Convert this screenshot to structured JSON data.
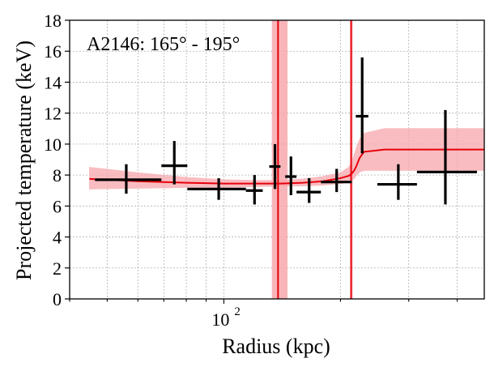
{
  "chart_data": {
    "type": "scatter",
    "annotation": "A2146: 165° - 195°",
    "xlabel": "Radius (kpc)",
    "ylabel": "Projected temperature (keV)",
    "x_scale": "log",
    "xlim": [
      40,
      470
    ],
    "ylim": [
      0,
      18
    ],
    "grid": true,
    "x_tick_labels": [
      {
        "value": 100,
        "base": "10",
        "exp": "2"
      }
    ],
    "y_ticks": [
      0,
      2,
      4,
      6,
      8,
      10,
      12,
      14,
      16,
      18
    ],
    "points": [
      {
        "x": 56,
        "xlo": 46.5,
        "xhi": 69,
        "y": 7.7,
        "ylo": 6.8,
        "yhi": 8.7
      },
      {
        "x": 74.5,
        "xlo": 69,
        "xhi": 80.5,
        "y": 8.6,
        "ylo": 7.4,
        "yhi": 10.2
      },
      {
        "x": 97,
        "xlo": 80.5,
        "xhi": 114,
        "y": 7.1,
        "ylo": 6.4,
        "yhi": 7.8
      },
      {
        "x": 120,
        "xlo": 114,
        "xhi": 126,
        "y": 7.0,
        "ylo": 6.1,
        "yhi": 8.0
      },
      {
        "x": 135.5,
        "xlo": 131,
        "xhi": 140,
        "y": 8.55,
        "ylo": 7.1,
        "yhi": 10.0
      },
      {
        "x": 149,
        "xlo": 144,
        "xhi": 154,
        "y": 7.9,
        "ylo": 6.7,
        "yhi": 9.2
      },
      {
        "x": 166,
        "xlo": 154,
        "xhi": 178,
        "y": 6.9,
        "ylo": 6.2,
        "yhi": 7.8
      },
      {
        "x": 195.5,
        "xlo": 178,
        "xhi": 214,
        "y": 7.55,
        "ylo": 6.9,
        "yhi": 8.4
      },
      {
        "x": 227.5,
        "xlo": 219,
        "xhi": 236,
        "y": 11.8,
        "ylo": 9.4,
        "yhi": 15.6
      },
      {
        "x": 282,
        "xlo": 249,
        "xhi": 315,
        "y": 7.4,
        "ylo": 6.4,
        "yhi": 8.7
      },
      {
        "x": 373,
        "xlo": 315,
        "xhi": 450,
        "y": 8.2,
        "ylo": 6.1,
        "yhi": 12.2
      }
    ],
    "model": {
      "x": [
        45,
        60,
        80,
        100,
        120,
        140,
        160,
        180,
        200,
        210,
        214,
        217,
        220,
        224,
        230,
        260,
        320,
        400,
        470
      ],
      "y": [
        7.75,
        7.6,
        7.5,
        7.45,
        7.45,
        7.45,
        7.5,
        7.6,
        7.8,
        7.95,
        8.1,
        8.3,
        8.6,
        9.1,
        9.5,
        9.65,
        9.65,
        9.65,
        9.65
      ],
      "band_lo": [
        7.1,
        7.15,
        7.2,
        7.2,
        7.25,
        7.3,
        7.3,
        7.35,
        7.45,
        7.55,
        7.65,
        7.8,
        8.0,
        8.2,
        8.3,
        8.3,
        8.3,
        8.3,
        8.3
      ],
      "band_hi": [
        8.5,
        8.15,
        7.85,
        7.7,
        7.65,
        7.65,
        7.75,
        7.9,
        8.15,
        8.5,
        8.85,
        9.3,
        9.8,
        10.3,
        10.7,
        11.0,
        11.0,
        11.0,
        11.0
      ],
      "color": "#e8000b",
      "band_color": "#f7a8ad"
    },
    "vertical_lines": [
      {
        "x": 138,
        "band": [
          133,
          146
        ]
      },
      {
        "x": 213,
        "band": [
          212,
          215
        ]
      }
    ]
  }
}
